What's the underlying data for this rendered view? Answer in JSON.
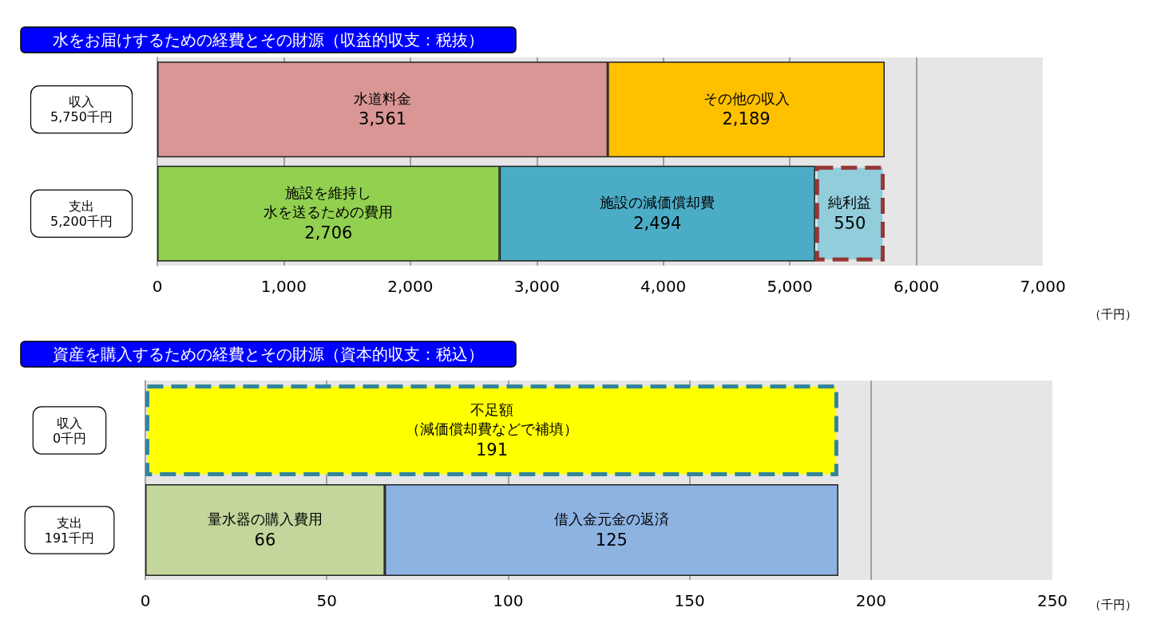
{
  "chart_data": [
    {
      "type": "bar",
      "orientation": "horizontal",
      "stacked": true,
      "title": "水をお届けするための経費とその財源（収益的収支：税抜）",
      "xlabel": "（千円）",
      "categories": [
        "収入\n5,750千円",
        "支出\n5,200千円"
      ],
      "series": [
        {
          "name": "水道料金",
          "color": "#d99694",
          "values": [
            3561,
            null
          ],
          "value_labels": [
            "3,561",
            null
          ]
        },
        {
          "name": "その他の収入",
          "color": "#ffc000",
          "values": [
            2189,
            null
          ],
          "value_labels": [
            "2,189",
            null
          ]
        },
        {
          "name": "施設を維持し水を送るための費用",
          "color": "#92d050",
          "values": [
            null,
            2706
          ],
          "value_labels": [
            null,
            "2,706"
          ]
        },
        {
          "name": "施設の減価償却費",
          "color": "#4bacc6",
          "values": [
            null,
            2494
          ],
          "value_labels": [
            null,
            "2,494"
          ]
        },
        {
          "name": "純利益",
          "color": "#92cddc",
          "values": [
            null,
            550
          ],
          "value_labels": [
            null,
            "550"
          ],
          "line_style": "dashed"
        }
      ],
      "xlim": [
        0,
        7000
      ],
      "xticks": [
        0,
        {
          "value": 1000,
          "label": "1,000"
        },
        {
          "value": 2000,
          "label": "2,000"
        },
        {
          "value": 3000,
          "label": "3,000"
        },
        {
          "value": 4000,
          "label": "4,000"
        },
        {
          "value": 5000,
          "label": "5,000"
        },
        {
          "value": 6000,
          "label": "6,000"
        },
        {
          "value": 7000,
          "label": "7,000"
        }
      ],
      "grid": "x",
      "legend": false
    },
    {
      "type": "bar",
      "orientation": "horizontal",
      "stacked": true,
      "title": "資産を購入するための経費とその財源（資本的収支：税込）",
      "xlabel": "（千円）",
      "categories": [
        "収入\n0千円",
        "支出\n191千円"
      ],
      "series": [
        {
          "name": "不足額（減価償却費などで補填）",
          "color": "#ffff00",
          "values": [
            191,
            null
          ],
          "value_labels": [
            "191",
            null
          ],
          "line_style": "dashed"
        },
        {
          "name": "量水器の購入費用",
          "color": "#c3d69b",
          "values": [
            null,
            66
          ],
          "value_labels": [
            null,
            "66"
          ]
        },
        {
          "name": "借入金元金の返済",
          "color": "#8db3e2",
          "values": [
            null,
            125
          ],
          "value_labels": [
            null,
            "125"
          ]
        }
      ],
      "xlim": [
        0,
        250
      ],
      "xticks": [
        0,
        50,
        100,
        150,
        200,
        250
      ],
      "grid": "x",
      "legend": false
    }
  ]
}
